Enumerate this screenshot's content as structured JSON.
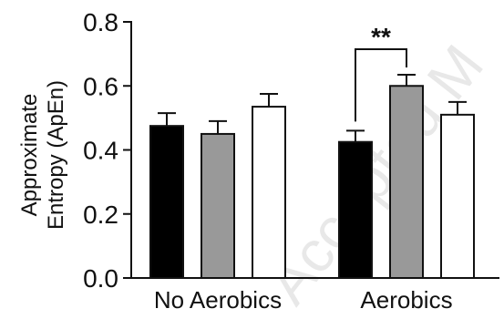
{
  "chart_data": {
    "type": "bar",
    "title": "",
    "ylabel_lines": [
      "Approximate",
      "Entropy (ApEn)"
    ],
    "xlabel": "",
    "ylim": [
      0,
      0.8
    ],
    "yticks": [
      "0.0",
      "0.2",
      "0.4",
      "0.6",
      "0.8"
    ],
    "grid": false,
    "legend": "none",
    "groups": [
      {
        "label": "No Aerobics",
        "bars": [
          {
            "value": 0.475,
            "error": 0.04,
            "color": "#000000"
          },
          {
            "value": 0.45,
            "error": 0.04,
            "color": "#999999"
          },
          {
            "value": 0.535,
            "error": 0.04,
            "color": "#ffffff"
          }
        ]
      },
      {
        "label": "Aerobics",
        "bars": [
          {
            "value": 0.425,
            "error": 0.035,
            "color": "#000000"
          },
          {
            "value": 0.6,
            "error": 0.035,
            "color": "#999999"
          },
          {
            "value": 0.51,
            "error": 0.04,
            "color": "#ffffff"
          }
        ]
      }
    ],
    "annotations": [
      {
        "text": "**",
        "group": 1,
        "from_bar": 0,
        "to_bar": 1
      }
    ]
  },
  "watermark_text": "Accepted M"
}
